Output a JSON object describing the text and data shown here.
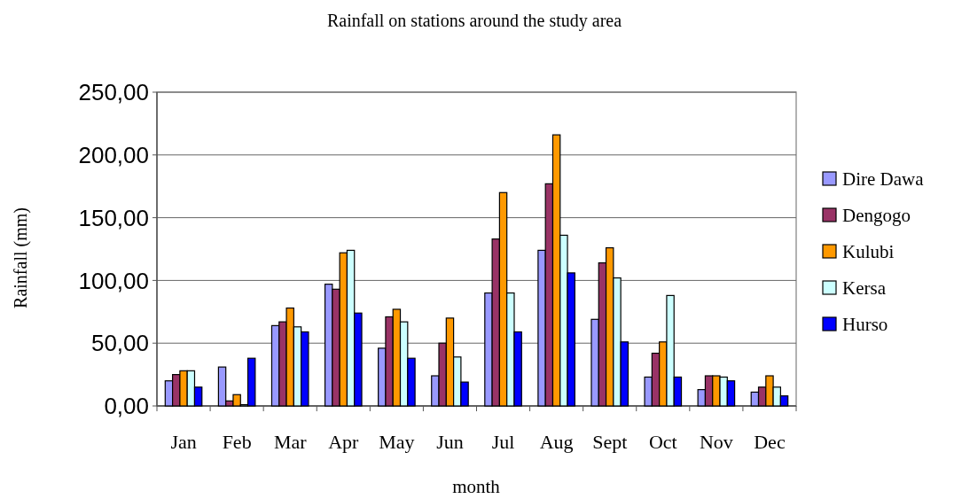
{
  "chart_data": {
    "type": "bar",
    "title": "Rainfall on stations around the study area",
    "xlabel": "month",
    "ylabel": "Rainfall (mm)",
    "categories": [
      "Jan",
      "Feb",
      "Mar",
      "Apr",
      "May",
      "Jun",
      "Jul",
      "Aug",
      "Sept",
      "Oct",
      "Nov",
      "Dec"
    ],
    "series": [
      {
        "name": "Dire Dawa",
        "color": "#9999ff",
        "values": [
          20,
          31,
          64,
          97,
          46,
          24,
          90,
          124,
          69,
          23,
          13,
          11
        ]
      },
      {
        "name": "Dengogo",
        "color": "#993366",
        "values": [
          25,
          4,
          67,
          93,
          71,
          50,
          133,
          177,
          114,
          42,
          24,
          15
        ]
      },
      {
        "name": "Kulubi",
        "color": "#ff9900",
        "values": [
          28,
          9,
          78,
          122,
          77,
          70,
          170,
          216,
          126,
          51,
          24,
          24
        ]
      },
      {
        "name": "Kersa",
        "color": "#ccffff",
        "values": [
          28,
          1,
          63,
          124,
          67,
          39,
          90,
          136,
          102,
          88,
          23,
          15
        ]
      },
      {
        "name": "Hurso",
        "color": "#0000ff",
        "values": [
          15,
          38,
          59,
          74,
          38,
          19,
          59,
          106,
          51,
          23,
          20,
          8
        ]
      }
    ],
    "ylim": [
      0,
      250
    ],
    "yticks": [
      {
        "value": 0,
        "label": "0,00"
      },
      {
        "value": 50,
        "label": "50,00"
      },
      {
        "value": 100,
        "label": "100,00"
      },
      {
        "value": 150,
        "label": "150,00"
      },
      {
        "value": 200,
        "label": "200,00"
      },
      {
        "value": 250,
        "label": "250,00"
      }
    ],
    "grid": "y",
    "legend": "right"
  }
}
